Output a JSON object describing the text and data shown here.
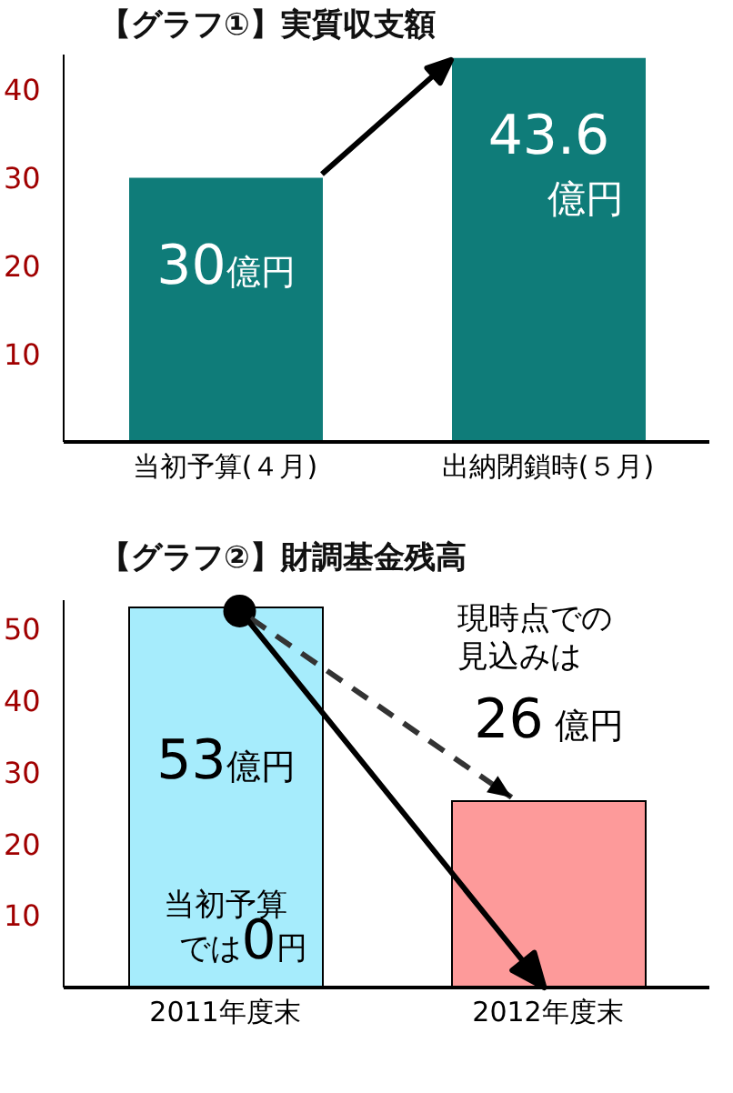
{
  "chart_data": [
    {
      "type": "bar",
      "title": "【グラフ①】実質収支額",
      "categories": [
        "当初予算(４月)",
        "出納閉鎖時(５月)"
      ],
      "values": [
        30,
        43.6
      ],
      "color": "#0f7c79",
      "value_labels": [
        "30億円",
        "43.6億円"
      ],
      "ylim": [
        0,
        44
      ],
      "yticks": [
        10,
        20,
        30,
        40
      ],
      "grid": false,
      "legend": false
    },
    {
      "type": "bar",
      "title": "【グラフ②】財調基金残高",
      "categories": [
        "2011年度末",
        "2012年度末"
      ],
      "values": [
        53,
        26
      ],
      "colors": [
        "#a6ecfc",
        "#fd9a9a"
      ],
      "value_labels": [
        "53億円",
        "26 億円"
      ],
      "annotations": [
        "現時点での見込みは",
        "当初予算では0円"
      ],
      "ylim": [
        0,
        54
      ],
      "yticks": [
        10,
        20,
        30,
        40,
        50
      ],
      "grid": false,
      "legend": false
    }
  ]
}
